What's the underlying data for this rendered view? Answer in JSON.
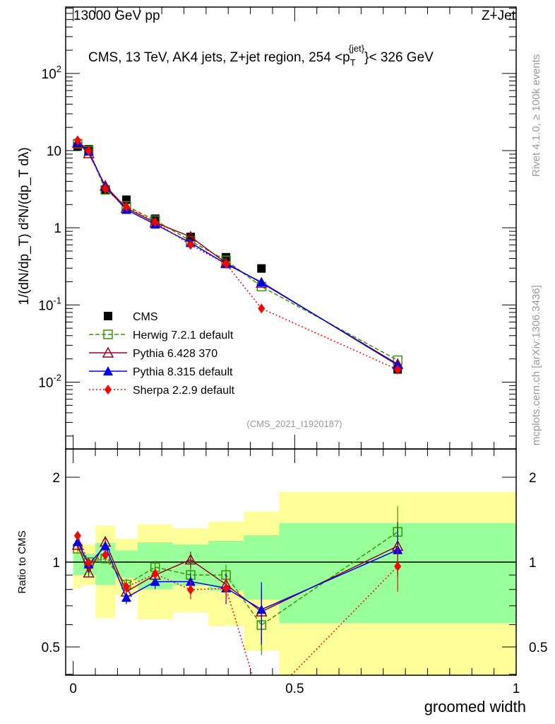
{
  "header": {
    "left": "13000 GeV pp",
    "right": "Z+Jet"
  },
  "side_labels": {
    "rivet": "Rivet 4.1.0, ≥ 100k events",
    "mcplots": "mcplots.cern.ch [arXiv:1306.3436]"
  },
  "chart_data": [
    {
      "type": "line",
      "title": "CMS, 13 TeV, AK4 jets, Z+jet region, 254 <p_T^{jet}> < 326 GeV",
      "title_parts": {
        "main": "CMS, 13 TeV, AK4 jets, Z+jet region, 254 <p",
        "sub": "T",
        "sup": "{jet}",
        "end": "}< 326 GeV"
      },
      "analysis_id": "(CMS_2021_I1920187)",
      "ylabel": "1/(dN/dp_T) d²N/(dp_T dλ)",
      "xlabel": "groomed width",
      "yscale": "log",
      "xlim": [
        -0.017,
        1.0
      ],
      "ylim": [
        0.00136,
        725
      ],
      "yticks": [
        {
          "v": 0.01,
          "label": "10^-2"
        },
        {
          "v": 0.1,
          "label": "10^-1"
        },
        {
          "v": 1,
          "label": "1"
        },
        {
          "v": 10,
          "label": "10"
        },
        {
          "v": 100,
          "label": "10^2"
        }
      ],
      "x": [
        0.01,
        0.035,
        0.0725,
        0.12,
        0.185,
        0.265,
        0.345,
        0.425,
        0.7325
      ],
      "series": [
        {
          "name": "CMS",
          "color": "#000000",
          "marker": "square-filled",
          "dash": "none",
          "values": [
            11.3,
            10.4,
            3.1,
            2.31,
            1.31,
            0.76,
            0.415,
            0.297,
            0.0146
          ]
        },
        {
          "name": "Herwig 7.2.1 default",
          "color": "#339900",
          "marker": "square-open",
          "dash": "6,3",
          "values": [
            12.3,
            10.0,
            3.1,
            1.92,
            1.25,
            0.675,
            0.378,
            0.173,
            0.0192
          ]
        },
        {
          "name": "Pythia 6.428 370",
          "color": "#990022",
          "marker": "triangle-open",
          "dash": "none",
          "values": [
            12.6,
            9.2,
            3.5,
            1.8,
            1.17,
            0.765,
            0.35,
            0.193,
            0.0171
          ]
        },
        {
          "name": "Pythia 8.315 default",
          "color": "#0000ee",
          "marker": "triangle-filled",
          "dash": "none",
          "values": [
            13.0,
            9.8,
            3.4,
            1.72,
            1.11,
            0.64,
            0.34,
            0.197,
            0.0166
          ]
        },
        {
          "name": "Sherpa 2.2.9 default",
          "color": "#ff0000",
          "marker": "diamond-filled",
          "dash": "2,3",
          "values": [
            13.6,
            9.95,
            3.2,
            1.88,
            1.18,
            0.6,
            0.34,
            0.09,
            0.0145
          ]
        }
      ]
    },
    {
      "type": "line",
      "ylabel": "Ratio to CMS",
      "yscale": "log",
      "ylim": [
        0.397,
        2.52
      ],
      "yticks": [
        {
          "v": 0.5,
          "label": "0.5"
        },
        {
          "v": 1,
          "label": "1"
        },
        {
          "v": 2,
          "label": "2"
        }
      ],
      "xticks": [
        {
          "v": 0,
          "label": "0"
        },
        {
          "v": 0.5,
          "label": "0.5"
        },
        {
          "v": 1,
          "label": "1"
        }
      ],
      "bin_edges": [
        0,
        0.02,
        0.05,
        0.095,
        0.145,
        0.225,
        0.305,
        0.385,
        0.465,
        1.0
      ],
      "band_inner": {
        "color": "#99ff99",
        "upper": [
          1.072,
          1.072,
          1.169,
          1.1,
          1.176,
          1.155,
          1.19,
          1.246,
          1.375
        ],
        "lower": [
          0.901,
          0.901,
          0.832,
          0.88,
          0.8,
          0.826,
          0.793,
          0.736,
          0.608
        ]
      },
      "band_outer": {
        "color": "#ffff99",
        "upper": [
          1.155,
          1.155,
          1.35,
          1.21,
          1.36,
          1.32,
          1.39,
          1.51,
          1.77
        ],
        "lower": [
          0.807,
          0.826,
          0.633,
          0.766,
          0.626,
          0.663,
          0.594,
          0.485,
          0.3
        ]
      },
      "x": [
        0.01,
        0.035,
        0.0725,
        0.12,
        0.185,
        0.265,
        0.345,
        0.425,
        0.7325
      ],
      "series": [
        {
          "name": "Herwig 7.2.1 default",
          "values": [
            1.116,
            1.0,
            1.03,
            0.833,
            0.96,
            0.9,
            0.9,
            0.598,
            1.28
          ],
          "err": [
            0.03,
            0.03,
            0.04,
            0.04,
            0.05,
            0.05,
            0.08,
            0.13,
            0.3
          ]
        },
        {
          "name": "Pythia 6.428 370",
          "values": [
            1.15,
            0.917,
            1.18,
            0.785,
            0.9,
            1.02,
            0.833,
            0.667,
            1.14
          ],
          "err": [
            0.03,
            0.03,
            0.04,
            0.04,
            0.05,
            0.07,
            0.08,
            0.14,
            0.25
          ]
        },
        {
          "name": "Pythia 8.315 default",
          "values": [
            1.18,
            0.983,
            1.14,
            0.749,
            0.853,
            0.853,
            0.809,
            0.679,
            1.105
          ],
          "err": [
            0.03,
            0.03,
            0.04,
            0.04,
            0.05,
            0.06,
            0.1,
            0.17,
            0.2
          ]
        },
        {
          "name": "Sherpa 2.2.9 default",
          "values": [
            1.24,
            0.995,
            1.06,
            0.817,
            0.909,
            0.798,
            0.807,
            0.31,
            0.966
          ],
          "err": [
            0.03,
            0.03,
            0.04,
            0.04,
            0.05,
            0.06,
            0.08,
            0.06,
            0.18
          ]
        }
      ]
    }
  ]
}
